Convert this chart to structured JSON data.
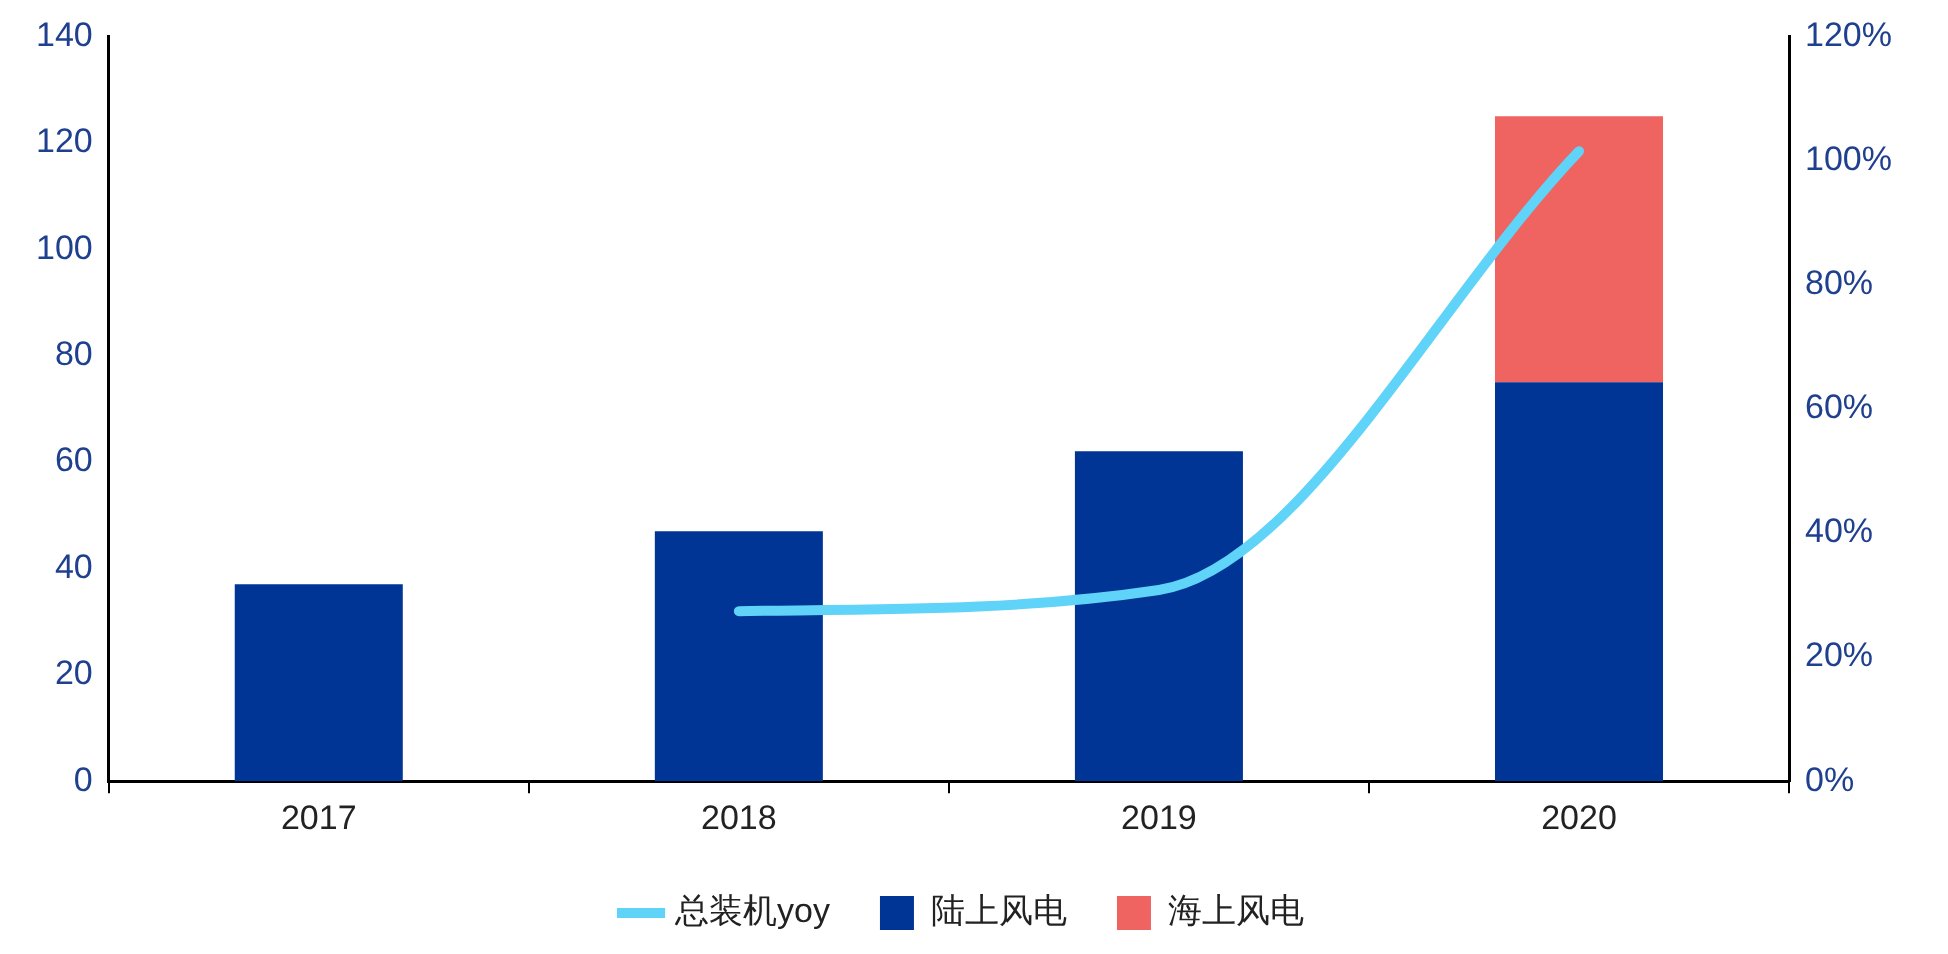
{
  "chart_data": {
    "type": "bar",
    "stacked": true,
    "categories": [
      "2017",
      "2018",
      "2019",
      "2020"
    ],
    "series": [
      {
        "name": "陆上风电",
        "color": "#003595",
        "values": [
          37,
          47,
          62,
          75
        ]
      },
      {
        "name": "海上风电",
        "color": "#ef6361",
        "values": [
          null,
          null,
          null,
          50
        ]
      },
      {
        "name": "总装机yoy",
        "type": "line",
        "axis": "y2",
        "color": "#5fd3f8",
        "values": [
          null,
          27.4,
          30.8,
          101.5
        ]
      }
    ],
    "ylim": [
      0,
      140
    ],
    "yticks": [
      0,
      20,
      40,
      60,
      80,
      100,
      120,
      140
    ],
    "y2lim": [
      0,
      120
    ],
    "y2ticks": [
      {
        "value": 0,
        "label": "0%"
      },
      {
        "value": 20,
        "label": "20%"
      },
      {
        "value": 40,
        "label": "40%"
      },
      {
        "value": 60,
        "label": "60%"
      },
      {
        "value": 80,
        "label": "80%"
      },
      {
        "value": 100,
        "label": "100%"
      },
      {
        "value": 120,
        "label": "120%"
      }
    ],
    "grid": false,
    "legend": "bottom",
    "marker": "none"
  }
}
